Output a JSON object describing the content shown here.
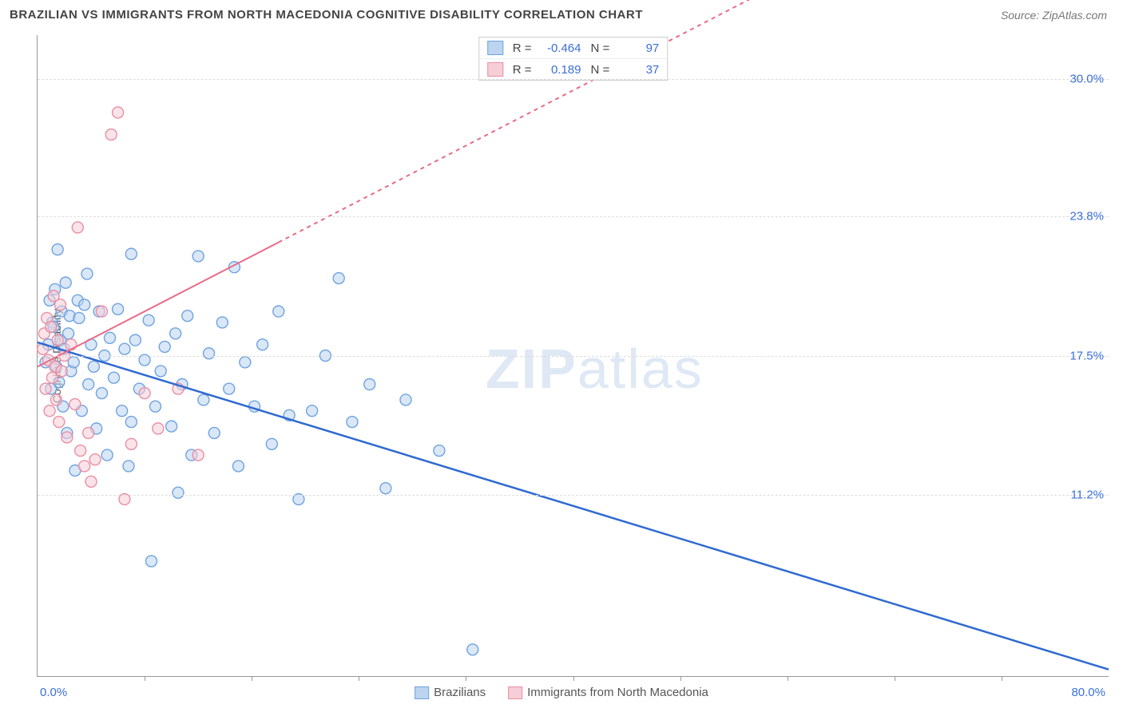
{
  "header": {
    "title": "BRAZILIAN VS IMMIGRANTS FROM NORTH MACEDONIA COGNITIVE DISABILITY CORRELATION CHART",
    "source": "Source: ZipAtlas.com"
  },
  "chart": {
    "type": "scatter",
    "background_color": "#ffffff",
    "grid_color": "#dddddd",
    "axis_color": "#999999",
    "y_axis": {
      "label": "Cognitive Disability",
      "label_color": "#555555",
      "label_fontsize": 14,
      "ticks": [
        {
          "value": 30.0,
          "label": "30.0%"
        },
        {
          "value": 23.8,
          "label": "23.8%"
        },
        {
          "value": 17.5,
          "label": "17.5%"
        },
        {
          "value": 11.2,
          "label": "11.2%"
        }
      ],
      "tick_color": "#3b6fd8",
      "ymin": 3.0,
      "ymax": 32.0
    },
    "x_axis": {
      "min_label": "0.0%",
      "max_label": "80.0%",
      "label_color": "#3b6fd8",
      "xmin": 0.0,
      "xmax": 80.0,
      "tick_positions": [
        8,
        16,
        24,
        32,
        40,
        48,
        56,
        64,
        72
      ]
    },
    "stat_box": {
      "rows": [
        {
          "swatch_fill": "#bcd4f0",
          "swatch_stroke": "#6fa3e0",
          "r_label": "R =",
          "r_value": "-0.464",
          "n_label": "N =",
          "n_value": "97"
        },
        {
          "swatch_fill": "#f7cdd7",
          "swatch_stroke": "#e98fa4",
          "r_label": "R =",
          "r_value": "0.189",
          "n_label": "N =",
          "n_value": "37"
        }
      ]
    },
    "bottom_legend": [
      {
        "swatch_fill": "#bcd4f0",
        "swatch_stroke": "#6fa3e0",
        "label": "Brazilians"
      },
      {
        "swatch_fill": "#f7cdd7",
        "swatch_stroke": "#e98fa4",
        "label": "Immigrants from North Macedonia"
      }
    ],
    "watermark": {
      "bold": "ZIP",
      "rest": "atlas",
      "color": "#dfe8f5"
    },
    "marker_radius": 7,
    "marker_stroke_width": 1.4,
    "series": [
      {
        "name": "Brazilians",
        "fill": "#bcd4f0",
        "stroke": "#6fa3e0",
        "fill_opacity": 0.55,
        "regression": {
          "x1": 0.0,
          "y1": 18.1,
          "x2": 80.0,
          "y2": 3.3,
          "stroke": "#2f6ad1",
          "width": 2.5,
          "dash": "none",
          "extrap_from_x": null
        },
        "points": [
          [
            0.6,
            17.2
          ],
          [
            0.8,
            18.0
          ],
          [
            0.9,
            20.0
          ],
          [
            1.0,
            16.0
          ],
          [
            1.1,
            19.0
          ],
          [
            1.2,
            18.8
          ],
          [
            1.3,
            20.5
          ],
          [
            1.4,
            17.0
          ],
          [
            1.5,
            22.3
          ],
          [
            1.6,
            16.3
          ],
          [
            1.7,
            18.2
          ],
          [
            1.8,
            19.5
          ],
          [
            1.9,
            15.2
          ],
          [
            2.0,
            17.8
          ],
          [
            2.1,
            20.8
          ],
          [
            2.2,
            14.0
          ],
          [
            2.3,
            18.5
          ],
          [
            2.4,
            19.3
          ],
          [
            2.5,
            16.8
          ],
          [
            2.7,
            17.2
          ],
          [
            2.8,
            12.3
          ],
          [
            3.0,
            20.0
          ],
          [
            3.1,
            19.2
          ],
          [
            3.3,
            15.0
          ],
          [
            3.5,
            19.8
          ],
          [
            3.7,
            21.2
          ],
          [
            3.8,
            16.2
          ],
          [
            4.0,
            18.0
          ],
          [
            4.2,
            17.0
          ],
          [
            4.4,
            14.2
          ],
          [
            4.6,
            19.5
          ],
          [
            4.8,
            15.8
          ],
          [
            5.0,
            17.5
          ],
          [
            5.2,
            13.0
          ],
          [
            5.4,
            18.3
          ],
          [
            5.7,
            16.5
          ],
          [
            6.0,
            19.6
          ],
          [
            6.3,
            15.0
          ],
          [
            6.5,
            17.8
          ],
          [
            6.8,
            12.5
          ],
          [
            7.0,
            14.5
          ],
          [
            7.0,
            22.1
          ],
          [
            7.3,
            18.2
          ],
          [
            7.6,
            16.0
          ],
          [
            8.0,
            17.3
          ],
          [
            8.3,
            19.1
          ],
          [
            8.5,
            8.2
          ],
          [
            8.8,
            15.2
          ],
          [
            9.2,
            16.8
          ],
          [
            9.5,
            17.9
          ],
          [
            10.0,
            14.3
          ],
          [
            10.3,
            18.5
          ],
          [
            10.5,
            11.3
          ],
          [
            10.8,
            16.2
          ],
          [
            11.2,
            19.3
          ],
          [
            11.5,
            13.0
          ],
          [
            12.0,
            22.0
          ],
          [
            12.4,
            15.5
          ],
          [
            12.8,
            17.6
          ],
          [
            13.2,
            14.0
          ],
          [
            13.8,
            19.0
          ],
          [
            14.3,
            16.0
          ],
          [
            14.7,
            21.5
          ],
          [
            15.0,
            12.5
          ],
          [
            15.5,
            17.2
          ],
          [
            16.2,
            15.2
          ],
          [
            16.8,
            18.0
          ],
          [
            17.5,
            13.5
          ],
          [
            18.0,
            19.5
          ],
          [
            18.8,
            14.8
          ],
          [
            19.5,
            11.0
          ],
          [
            20.5,
            15.0
          ],
          [
            21.5,
            17.5
          ],
          [
            22.5,
            21.0
          ],
          [
            23.5,
            14.5
          ],
          [
            24.8,
            16.2
          ],
          [
            26.0,
            11.5
          ],
          [
            27.5,
            15.5
          ],
          [
            30.0,
            13.2
          ],
          [
            32.5,
            4.2
          ]
        ]
      },
      {
        "name": "Immigrants from North Macedonia",
        "fill": "#f7cdd7",
        "stroke": "#e98fa4",
        "fill_opacity": 0.55,
        "regression": {
          "x1": 0.0,
          "y1": 17.0,
          "x2": 80.0,
          "y2": 42.0,
          "stroke": "#e86b87",
          "width": 2,
          "dash": "5,5",
          "extrap_from_x": 18.0
        },
        "points": [
          [
            0.4,
            17.8
          ],
          [
            0.5,
            18.5
          ],
          [
            0.6,
            16.0
          ],
          [
            0.7,
            19.2
          ],
          [
            0.8,
            17.3
          ],
          [
            0.9,
            15.0
          ],
          [
            1.0,
            18.8
          ],
          [
            1.1,
            16.5
          ],
          [
            1.2,
            20.2
          ],
          [
            1.3,
            17.0
          ],
          [
            1.4,
            15.5
          ],
          [
            1.5,
            18.2
          ],
          [
            1.6,
            14.5
          ],
          [
            1.7,
            19.8
          ],
          [
            1.8,
            16.8
          ],
          [
            2.0,
            17.5
          ],
          [
            2.2,
            13.8
          ],
          [
            2.5,
            18.0
          ],
          [
            2.8,
            15.3
          ],
          [
            3.0,
            23.3
          ],
          [
            3.2,
            13.2
          ],
          [
            3.5,
            12.5
          ],
          [
            3.8,
            14.0
          ],
          [
            4.0,
            11.8
          ],
          [
            4.3,
            12.8
          ],
          [
            4.8,
            19.5
          ],
          [
            5.5,
            27.5
          ],
          [
            6.0,
            28.5
          ],
          [
            6.5,
            11.0
          ],
          [
            7.0,
            13.5
          ],
          [
            8.0,
            15.8
          ],
          [
            9.0,
            14.2
          ],
          [
            10.5,
            16.0
          ],
          [
            12.0,
            13.0
          ]
        ]
      }
    ]
  }
}
